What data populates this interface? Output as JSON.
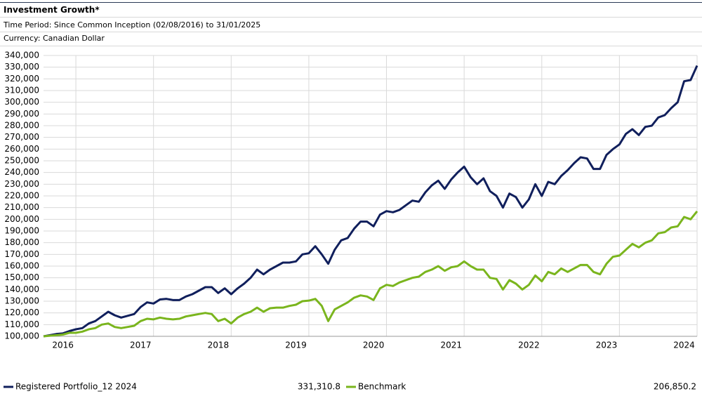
{
  "chart_data": {
    "type": "line",
    "title": "Investment Growth*",
    "subtitle": "Time Period: Since Common Inception (02/08/2016) to 31/01/2025",
    "currency": "Currency: Canadian Dollar",
    "grid": true,
    "legend": "bottom",
    "ylim": [
      100000,
      340000
    ],
    "yticks": [
      {
        "value": 100000,
        "label": "100,000"
      },
      {
        "value": 110000,
        "label": "110,000"
      },
      {
        "value": 120000,
        "label": "120,000"
      },
      {
        "value": 130000,
        "label": "130,000"
      },
      {
        "value": 140000,
        "label": "140,000"
      },
      {
        "value": 150000,
        "label": "150,000"
      },
      {
        "value": 160000,
        "label": "160,000"
      },
      {
        "value": 170000,
        "label": "170,000"
      },
      {
        "value": 180000,
        "label": "180,000"
      },
      {
        "value": 190000,
        "label": "190,000"
      },
      {
        "value": 200000,
        "label": "200,000"
      },
      {
        "value": 210000,
        "label": "210,000"
      },
      {
        "value": 220000,
        "label": "220,000"
      },
      {
        "value": 230000,
        "label": "230,000"
      },
      {
        "value": 240000,
        "label": "240,000"
      },
      {
        "value": 250000,
        "label": "250,000"
      },
      {
        "value": 260000,
        "label": "260,000"
      },
      {
        "value": 270000,
        "label": "270,000"
      },
      {
        "value": 280000,
        "label": "280,000"
      },
      {
        "value": 290000,
        "label": "290,000"
      },
      {
        "value": 300000,
        "label": "300,000"
      },
      {
        "value": 310000,
        "label": "310,000"
      },
      {
        "value": 320000,
        "label": "320,000"
      },
      {
        "value": 330000,
        "label": "330,000"
      },
      {
        "value": 340000,
        "label": "340,000"
      }
    ],
    "categories": [
      null,
      null,
      null,
      "2016",
      null,
      null,
      null,
      null,
      null,
      null,
      null,
      null,
      null,
      null,
      null,
      "2017",
      null,
      null,
      null,
      null,
      null,
      null,
      null,
      null,
      null,
      null,
      null,
      "2018",
      null,
      null,
      null,
      null,
      null,
      null,
      null,
      null,
      null,
      null,
      null,
      "2019",
      null,
      null,
      null,
      null,
      null,
      null,
      null,
      null,
      null,
      null,
      null,
      "2020",
      null,
      null,
      null,
      null,
      null,
      null,
      null,
      null,
      null,
      null,
      null,
      "2021",
      null,
      null,
      null,
      null,
      null,
      null,
      null,
      null,
      null,
      null,
      null,
      "2022",
      null,
      null,
      null,
      null,
      null,
      null,
      null,
      null,
      null,
      null,
      null,
      "2023",
      null,
      null,
      null,
      null,
      null,
      null,
      null,
      null,
      null,
      null,
      null,
      "2024",
      null,
      null
    ],
    "series": [
      {
        "name": "Registered Portfolio_12 2024",
        "color": "#101f5c",
        "value_label": "331,310.8",
        "values": [
          100000,
          101000,
          102000,
          102500,
          104500,
          106000,
          107000,
          111000,
          113000,
          117000,
          121000,
          118000,
          116000,
          117500,
          119000,
          125000,
          129000,
          128000,
          131500,
          132000,
          131000,
          131000,
          134000,
          136000,
          139000,
          142000,
          142000,
          137000,
          141000,
          136000,
          141000,
          145000,
          150000,
          157000,
          153000,
          157000,
          160000,
          163000,
          163000,
          164000,
          170000,
          171000,
          177000,
          170000,
          162000,
          174000,
          182000,
          184000,
          192000,
          198000,
          198000,
          194000,
          204000,
          207000,
          206000,
          208000,
          212000,
          216000,
          215000,
          223000,
          229000,
          233000,
          226000,
          234000,
          240000,
          245000,
          236000,
          230000,
          235000,
          224000,
          220000,
          210000,
          222000,
          219000,
          210000,
          217000,
          230000,
          220000,
          232000,
          230000,
          237000,
          242000,
          248000,
          253000,
          252000,
          243000,
          243000,
          255000,
          260000,
          264000,
          273000,
          277000,
          272000,
          279000,
          280000,
          287000,
          289000,
          295000,
          300000,
          318000,
          319000,
          331310.8
        ]
      },
      {
        "name": "Benchmark",
        "color": "#7ab51d",
        "value_label": "206,850.2",
        "values": [
          100000,
          100500,
          101000,
          101500,
          103000,
          103000,
          104000,
          106000,
          107000,
          110000,
          111000,
          108000,
          107000,
          108000,
          109000,
          113000,
          115000,
          114500,
          116000,
          115000,
          114500,
          115000,
          117000,
          118000,
          119000,
          120000,
          119000,
          113000,
          115000,
          111000,
          116000,
          119000,
          121000,
          124500,
          121000,
          124000,
          124500,
          124500,
          126000,
          127000,
          130000,
          130500,
          132000,
          126000,
          113000,
          123000,
          126000,
          129000,
          133000,
          135000,
          134000,
          131000,
          141000,
          144000,
          143000,
          146000,
          148000,
          150000,
          151000,
          155000,
          157000,
          160000,
          156000,
          159000,
          160000,
          164000,
          160000,
          157000,
          157000,
          150000,
          149000,
          140000,
          148000,
          145000,
          140000,
          144000,
          152000,
          147000,
          155000,
          153000,
          158000,
          155000,
          158000,
          161000,
          161000,
          155000,
          153000,
          162000,
          168000,
          169000,
          174000,
          179000,
          176000,
          180000,
          182000,
          188000,
          189000,
          193000,
          194000,
          202000,
          200000,
          206850.2
        ]
      }
    ]
  }
}
